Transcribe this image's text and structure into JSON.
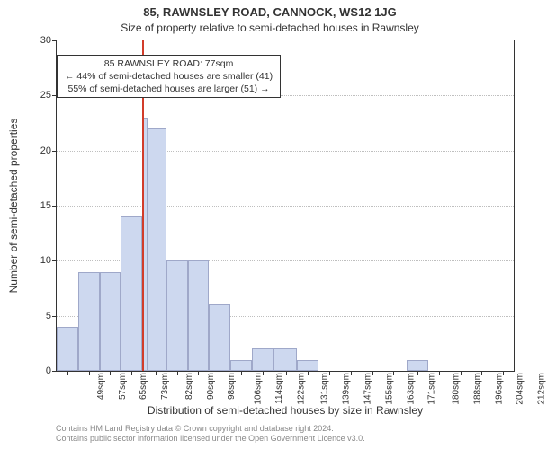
{
  "title_main": "85, RAWNSLEY ROAD, CANNOCK, WS12 1JG",
  "title_sub": "Size of property relative to semi-detached houses in Rawnsley",
  "y_label": "Number of semi-detached properties",
  "x_label": "Distribution of semi-detached houses by size in Rawnsley",
  "footer_line1": "Contains HM Land Registry data © Crown copyright and database right 2024.",
  "footer_line2": "Contains public sector information licensed under the Open Government Licence v3.0.",
  "annotation": {
    "line1": "85 RAWNSLEY ROAD: 77sqm",
    "line2": "← 44% of semi-detached houses are smaller (41)",
    "line3": "55% of semi-detached houses are larger (51) →"
  },
  "chart": {
    "type": "histogram",
    "ylim": [
      0,
      30
    ],
    "ytick_step": 5,
    "yticks": [
      0,
      5,
      10,
      15,
      20,
      25,
      30
    ],
    "xlim": [
      45,
      216
    ],
    "xticks": [
      49,
      57,
      65,
      73,
      82,
      90,
      98,
      106,
      114,
      122,
      131,
      139,
      147,
      155,
      163,
      171,
      180,
      188,
      196,
      204,
      212
    ],
    "xtick_suffix": "sqm",
    "bar_color": "#cdd8ef",
    "bar_border_color": "#9fa8c9",
    "grid_color": "#bfbfbf",
    "axis_color": "#333333",
    "background_color": "#ffffff",
    "marker": {
      "x": 77,
      "color": "#d23c2a"
    },
    "bars": [
      {
        "x0": 45,
        "x1": 53,
        "y": 4
      },
      {
        "x0": 53,
        "x1": 61,
        "y": 9
      },
      {
        "x0": 61,
        "x1": 69,
        "y": 9
      },
      {
        "x0": 69,
        "x1": 77,
        "y": 14
      },
      {
        "x0": 77,
        "x1": 79,
        "y": 23
      },
      {
        "x0": 79,
        "x1": 86,
        "y": 22
      },
      {
        "x0": 86,
        "x1": 94,
        "y": 10
      },
      {
        "x0": 94,
        "x1": 102,
        "y": 10
      },
      {
        "x0": 102,
        "x1": 110,
        "y": 6
      },
      {
        "x0": 110,
        "x1": 118,
        "y": 1
      },
      {
        "x0": 118,
        "x1": 126,
        "y": 2
      },
      {
        "x0": 126,
        "x1": 135,
        "y": 2
      },
      {
        "x0": 135,
        "x1": 143,
        "y": 1
      },
      {
        "x0": 176,
        "x1": 184,
        "y": 1
      }
    ],
    "anno_box": {
      "x": 45,
      "y_top": 28.7
    },
    "title_fontsize": 13,
    "subtitle_fontsize": 12,
    "label_fontsize": 12,
    "tick_fontsize": 11,
    "xtick_fontsize": 10,
    "anno_fontsize": 10.5,
    "footer_fontsize": 9,
    "footer_color": "#888888"
  }
}
